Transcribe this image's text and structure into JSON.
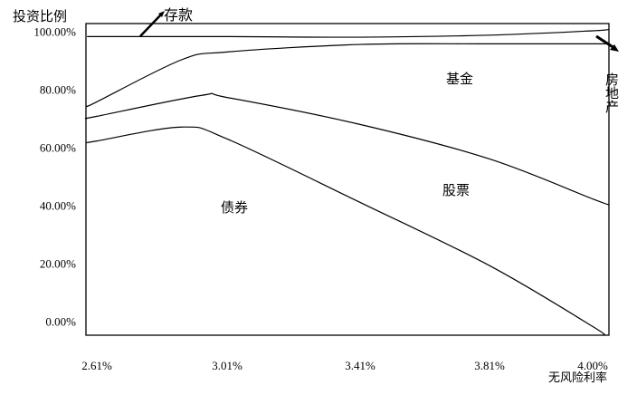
{
  "chart_data": {
    "type": "area",
    "stacked": true,
    "title": "",
    "ylabel": "投资比例",
    "xlabel": "无风险利率",
    "x_ticks": [
      "2.61%",
      "3.01%",
      "3.41%",
      "3.81%",
      "4.00%"
    ],
    "x_tick_values": [
      2.61,
      3.01,
      3.41,
      3.81,
      4.0
    ],
    "y_ticks": [
      "0.00%",
      "20.00%",
      "40.00%",
      "60.00%",
      "80.00%",
      "100.00%"
    ],
    "y_tick_values": [
      0,
      20,
      40,
      60,
      80,
      100
    ],
    "ylim": [
      -3,
      104.5
    ],
    "xlim": [
      2.58,
      4.03
    ],
    "grid": false,
    "boundary_curves": [
      {
        "name": "债券",
        "points": [
          [
            2.58,
            63.4
          ],
          [
            2.61,
            64
          ],
          [
            2.87,
            68.8
          ],
          [
            3.01,
            64.7
          ],
          [
            3.41,
            42.8
          ],
          [
            3.81,
            21
          ],
          [
            4.0,
            0
          ],
          [
            4.02,
            -3
          ]
        ]
      },
      {
        "name": "股票",
        "points": [
          [
            2.58,
            71.9
          ],
          [
            2.61,
            72.5
          ],
          [
            2.93,
            79.7
          ],
          [
            3.01,
            79
          ],
          [
            3.41,
            69.7
          ],
          [
            3.81,
            57.8
          ],
          [
            4.0,
            44
          ],
          [
            4.03,
            42
          ]
        ]
      },
      {
        "name": "基金",
        "points": [
          [
            2.58,
            76
          ],
          [
            2.61,
            77.5
          ],
          [
            2.87,
            92
          ],
          [
            3.01,
            94.7
          ],
          [
            3.41,
            97.3
          ],
          [
            3.81,
            97.5
          ],
          [
            4.0,
            97.5
          ],
          [
            4.03,
            97.5
          ]
        ]
      },
      {
        "name": "存款",
        "points": [
          [
            2.58,
            100
          ],
          [
            3.01,
            100
          ],
          [
            3.41,
            99.8
          ],
          [
            3.81,
            100.5
          ],
          [
            4.0,
            102
          ],
          [
            4.03,
            102.5
          ]
        ]
      }
    ],
    "region_labels": {
      "bonds": "债券",
      "stocks": "股票",
      "funds": "基金",
      "deposits": "存款",
      "real_estate": "房地产"
    },
    "colors": {
      "line": "#000000",
      "background": "#ffffff"
    }
  }
}
